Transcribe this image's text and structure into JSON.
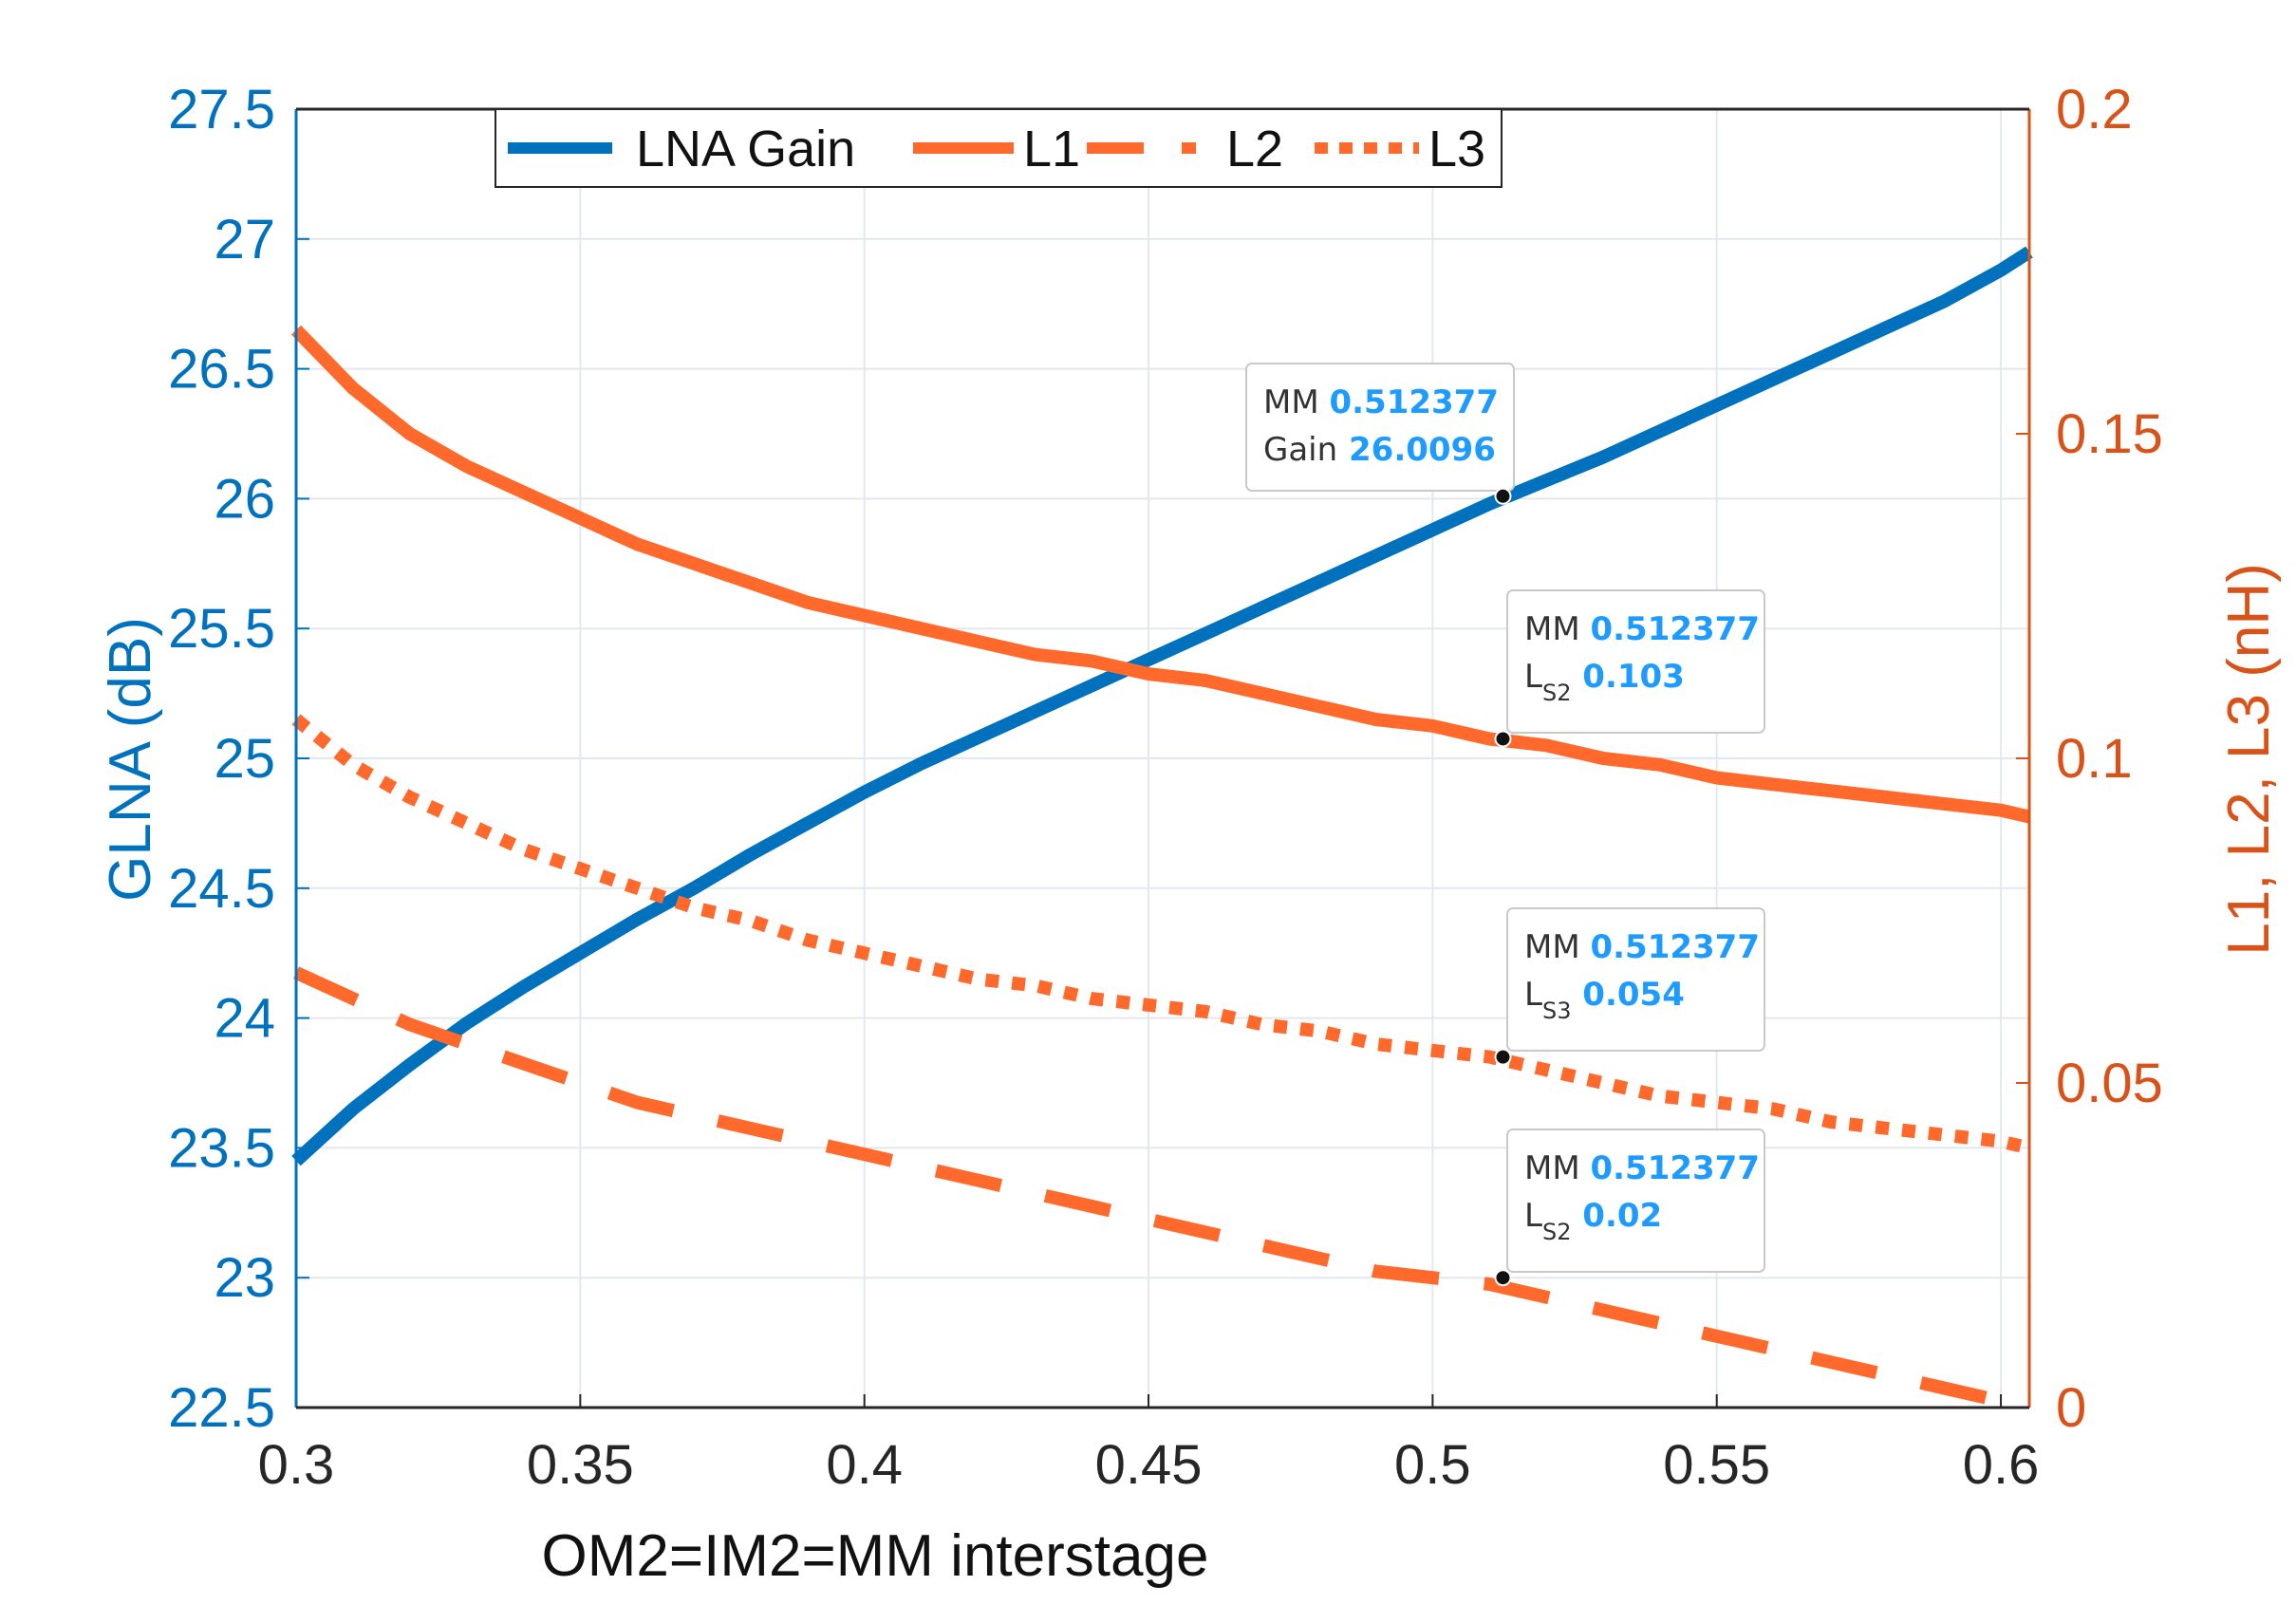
{
  "colors": {
    "left_axis": "#0072BD",
    "right_axis": "#D95319",
    "gain_line": "#0072BD",
    "l_lines": "#FF6A2C",
    "tip_value": "#1E9BFF",
    "grid": "#E3E8EE"
  },
  "chart_data": {
    "type": "line",
    "xlabel": "OM2=IM2=MM interstage",
    "ylabel_left": "GLNA (dB)",
    "ylabel_right": "L1, L2, L3 (nH)",
    "xlim": [
      0.3,
      0.605
    ],
    "ylim_left": [
      22.5,
      27.5
    ],
    "ylim_right": [
      0,
      0.2
    ],
    "grid": true,
    "legend_placement": "top",
    "xticks": [
      "0.3",
      "0.35",
      "0.4",
      "0.45",
      "0.5",
      "0.55",
      "0.6"
    ],
    "yticks_left": [
      "22.5",
      "23",
      "23.5",
      "24",
      "24.5",
      "25",
      "25.5",
      "26",
      "26.5",
      "27",
      "27.5"
    ],
    "yticks_right": [
      "0",
      "0.05",
      "0.1",
      "0.15",
      "0.2"
    ],
    "x": [
      0.3,
      0.31,
      0.32,
      0.33,
      0.34,
      0.35,
      0.36,
      0.37,
      0.38,
      0.39,
      0.4,
      0.41,
      0.42,
      0.43,
      0.44,
      0.45,
      0.46,
      0.47,
      0.48,
      0.49,
      0.5,
      0.51,
      0.52,
      0.53,
      0.54,
      0.55,
      0.56,
      0.57,
      0.58,
      0.59,
      0.6,
      0.605
    ],
    "series": [
      {
        "name": "LNA Gain",
        "axis": "left",
        "style": "solid",
        "values": [
          23.45,
          23.65,
          23.82,
          23.98,
          24.12,
          24.25,
          24.38,
          24.5,
          24.63,
          24.75,
          24.87,
          24.98,
          25.08,
          25.18,
          25.28,
          25.38,
          25.48,
          25.58,
          25.68,
          25.78,
          25.88,
          25.98,
          26.07,
          26.16,
          26.26,
          26.36,
          26.46,
          26.56,
          26.66,
          26.76,
          26.88,
          26.95
        ]
      },
      {
        "name": "L1",
        "axis": "right",
        "style": "solid",
        "values": [
          0.166,
          0.157,
          0.15,
          0.145,
          0.141,
          0.137,
          0.133,
          0.13,
          0.127,
          0.124,
          0.122,
          0.12,
          0.118,
          0.116,
          0.115,
          0.113,
          0.112,
          0.11,
          0.108,
          0.106,
          0.105,
          0.103,
          0.102,
          0.1,
          0.099,
          0.097,
          0.096,
          0.095,
          0.094,
          0.093,
          0.092,
          0.091
        ]
      },
      {
        "name": "L2",
        "axis": "right",
        "style": "dashed",
        "values": [
          0.067,
          0.063,
          0.059,
          0.056,
          0.053,
          0.05,
          0.047,
          0.045,
          0.043,
          0.041,
          0.039,
          0.037,
          0.035,
          0.033,
          0.031,
          0.029,
          0.027,
          0.025,
          0.023,
          0.021,
          0.02,
          0.019,
          0.017,
          0.015,
          0.013,
          0.011,
          0.009,
          0.007,
          0.005,
          0.003,
          0.001,
          0.0
        ]
      },
      {
        "name": "L3",
        "axis": "right",
        "style": "dotted",
        "values": [
          0.106,
          0.099,
          0.094,
          0.09,
          0.086,
          0.083,
          0.08,
          0.077,
          0.075,
          0.072,
          0.07,
          0.068,
          0.066,
          0.065,
          0.063,
          0.062,
          0.061,
          0.059,
          0.058,
          0.056,
          0.055,
          0.054,
          0.052,
          0.05,
          0.048,
          0.047,
          0.046,
          0.044,
          0.043,
          0.042,
          0.041,
          0.04
        ]
      }
    ],
    "annotations": [
      {
        "label1": "MM",
        "value1": "0.512377",
        "label2": "Gain",
        "label2_sub": "",
        "value2": "26.0096",
        "series": "LNA Gain",
        "x": 0.512377,
        "y": 26.0096,
        "axis": "left"
      },
      {
        "label1": "MM",
        "value1": "0.512377",
        "label2": "L",
        "label2_sub": "S2",
        "value2": "0.103",
        "series": "L1",
        "x": 0.512377,
        "y": 0.103,
        "axis": "right"
      },
      {
        "label1": "MM",
        "value1": "0.512377",
        "label2": "L",
        "label2_sub": "S3",
        "value2": "0.054",
        "series": "L3",
        "x": 0.512377,
        "y": 0.054,
        "axis": "right"
      },
      {
        "label1": "MM",
        "value1": "0.512377",
        "label2": "L",
        "label2_sub": "S2",
        "value2": "0.02",
        "series": "L2",
        "x": 0.512377,
        "y": 0.02,
        "axis": "right"
      }
    ]
  }
}
